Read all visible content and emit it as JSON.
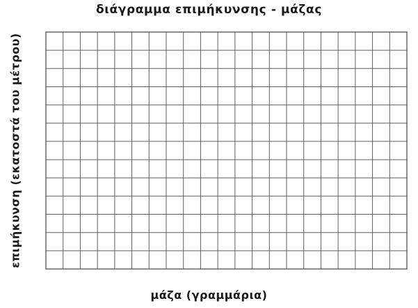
{
  "chart_data": {
    "type": "scatter",
    "title": "διάγραμμα επιμήκυνσης - μάζας",
    "xlabel": "μάζα (γραμμάρια)",
    "ylabel": "επιμήκυνση (εκατοστά του μέτρου)",
    "series": [],
    "x_divisions": 21,
    "y_divisions": 13,
    "tick_labels_shown": false,
    "grid": true,
    "legend": "none",
    "grid_color": "#5f5f5f",
    "background_color": "#ffffff"
  }
}
